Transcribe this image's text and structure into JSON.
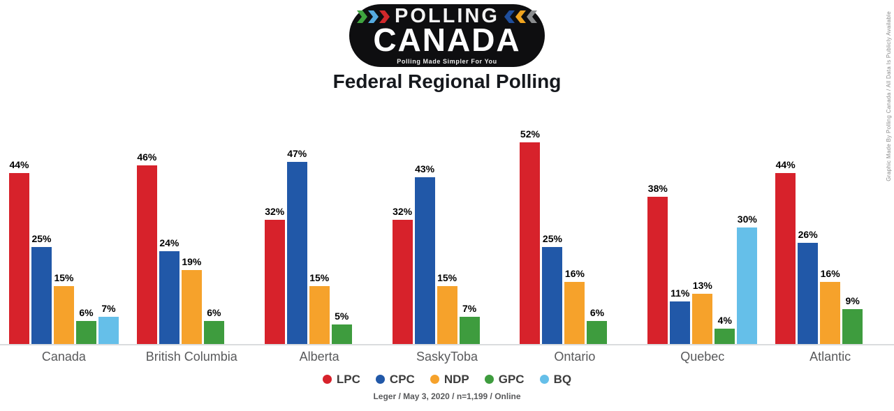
{
  "logo": {
    "brand_line1": "POLLING",
    "brand_line2": "CANADA",
    "tagline": "Polling Made Simpler For You",
    "chevrons_left_colors": [
      "#3FA43F",
      "#55AADF",
      "#D0282B"
    ],
    "chevrons_right_colors": [
      "#1F4E9C",
      "#F0A41F",
      "#8A8C8E"
    ]
  },
  "title": "Federal Regional Polling",
  "chart_data": {
    "type": "bar",
    "title": "Federal Regional Polling",
    "categories": [
      "Canada",
      "British Columbia",
      "Alberta",
      "SaskyToba",
      "Ontario",
      "Quebec",
      "Atlantic"
    ],
    "series": [
      {
        "name": "LPC",
        "color": "#D7222B",
        "values": [
          44,
          46,
          32,
          32,
          52,
          38,
          44
        ]
      },
      {
        "name": "CPC",
        "color": "#2158A8",
        "values": [
          25,
          24,
          47,
          43,
          25,
          11,
          26
        ]
      },
      {
        "name": "NDP",
        "color": "#F6A22B",
        "values": [
          15,
          19,
          15,
          15,
          16,
          13,
          16
        ]
      },
      {
        "name": "GPC",
        "color": "#3E9C3E",
        "values": [
          6,
          6,
          5,
          7,
          6,
          4,
          9
        ]
      },
      {
        "name": "BQ",
        "color": "#65BFE9",
        "values": [
          7,
          null,
          null,
          null,
          null,
          30,
          null
        ]
      }
    ],
    "value_suffix": "%",
    "ylim": [
      0,
      55
    ],
    "grid": false,
    "legend_position": "bottom",
    "value_labels": true
  },
  "footer": {
    "source_line": "Leger / May 3, 2020 / n=1,199 / Online"
  },
  "side_note": "Graphic Made By Polling Canada / All Data Is Publicly Available"
}
